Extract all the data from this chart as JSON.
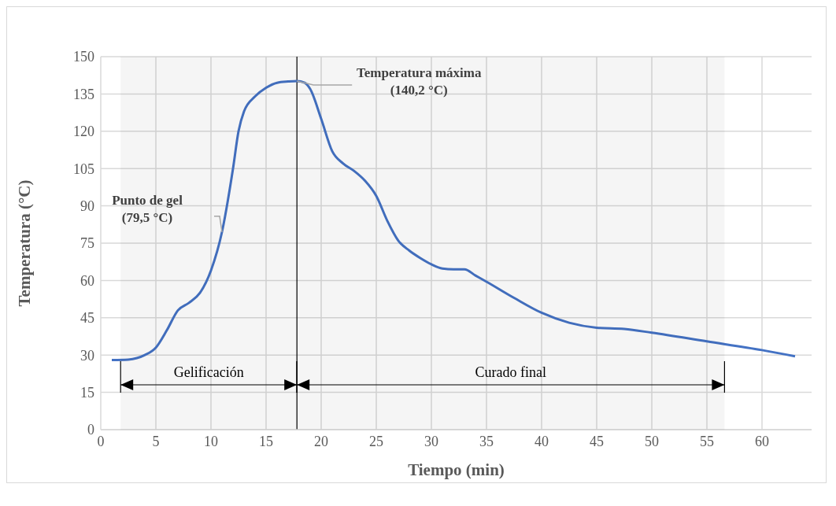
{
  "chart_data": {
    "type": "line",
    "xlabel": "Tiempo  (min)",
    "ylabel": "Temperatura  (°C)",
    "x": [
      1,
      2.5,
      4,
      5,
      6,
      7,
      8,
      9,
      10,
      11,
      12,
      12.5,
      13,
      14,
      15,
      16,
      17,
      17.8,
      18.5,
      19,
      20,
      21,
      22,
      23,
      24,
      25,
      26,
      27,
      28,
      29,
      30,
      31,
      32,
      33,
      34,
      35,
      37.5,
      40,
      42.5,
      45,
      47.5,
      50,
      55,
      60,
      63
    ],
    "series": [
      {
        "color": "#4472c4",
        "values": [
          28,
          28.2,
          30,
          33,
          40,
          48,
          51,
          55,
          64,
          79.5,
          105,
          120,
          128,
          134,
          137.5,
          139.5,
          140,
          140.2,
          139.5,
          137,
          125,
          112,
          107,
          104,
          100,
          94,
          84,
          76,
          72,
          69,
          66.5,
          64.8,
          64.5,
          64.5,
          62,
          59.5,
          53,
          47,
          43,
          41,
          40.5,
          39,
          35.5,
          32,
          29.5
        ]
      }
    ],
    "xlim": [
      0,
      64.5
    ],
    "xticks": [
      0,
      5,
      10,
      15,
      20,
      25,
      30,
      35,
      40,
      45,
      50,
      55,
      60
    ],
    "ylim": [
      0,
      150
    ],
    "yticks": [
      0,
      15,
      30,
      45,
      60,
      75,
      90,
      105,
      120,
      135,
      150
    ],
    "grid": true,
    "marker": "none",
    "line_style": "solid",
    "ref_lines": [
      {
        "axis": "x",
        "value": 17.8,
        "color": "#000000"
      }
    ],
    "bands": [
      {
        "axis": "x",
        "from": 1.8,
        "to": 17.8,
        "label": "Gelificación",
        "color": "#000000"
      },
      {
        "axis": "x",
        "from": 17.8,
        "to": 56.6,
        "label": "Curado final",
        "color": "#000000"
      }
    ],
    "annotations": [
      {
        "text": "Punto de gel\n(79,5 °C)",
        "x": 11,
        "y": 79.5
      },
      {
        "text": "Temperatura máxima\n(140,2 °C)",
        "x": 17.8,
        "y": 140.2
      }
    ]
  }
}
